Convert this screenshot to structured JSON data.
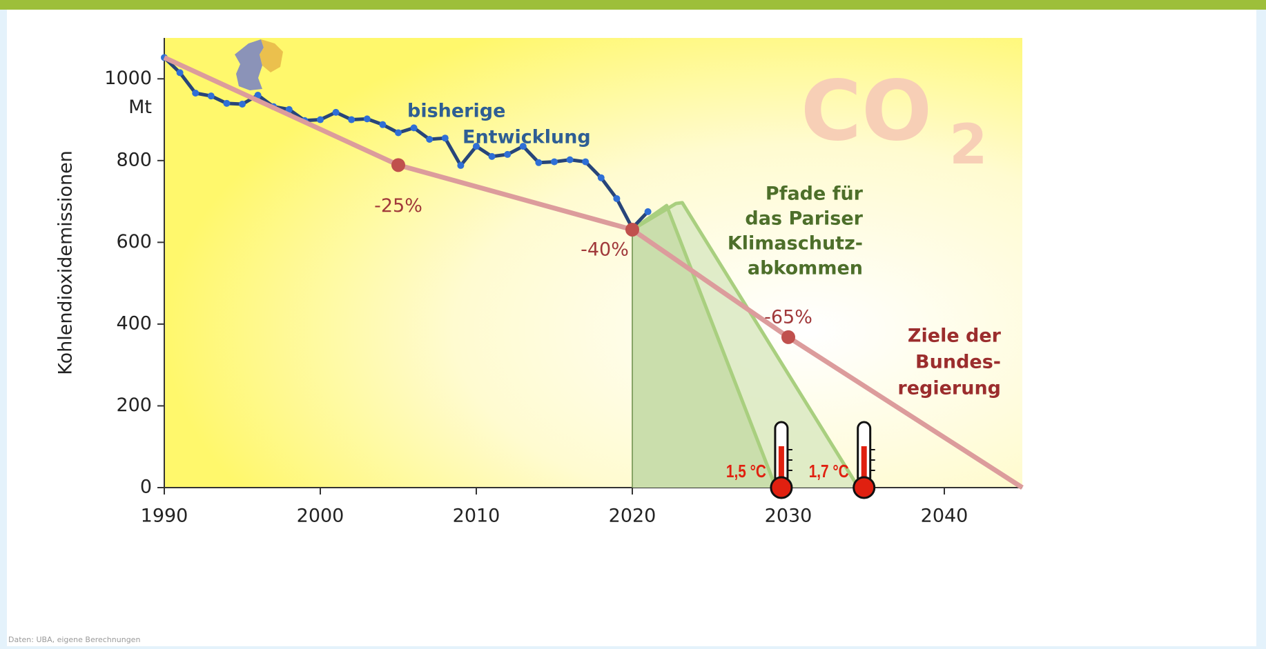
{
  "chart_data": {
    "type": "line",
    "y_label": "Kohlendioxidemissionen",
    "unit_label": "Mt",
    "watermark": {
      "main": "CO",
      "sub": "2"
    },
    "source": "Daten: UBA, eigene Berechnungen",
    "xlim": [
      1990,
      2045
    ],
    "ylim": [
      0,
      1100
    ],
    "xticks": [
      1990,
      2000,
      2010,
      2020,
      2030,
      2040
    ],
    "yticks": [
      0,
      200,
      400,
      600,
      800,
      1000
    ],
    "series": [
      {
        "name_lines": [
          "bisherige",
          "Entwicklung"
        ],
        "color": "#27457a",
        "marker_color": "#2f6fd6",
        "markers": true,
        "x": [
          1990,
          1991,
          1992,
          1993,
          1994,
          1995,
          1996,
          1997,
          1998,
          1999,
          2000,
          2001,
          2002,
          2003,
          2004,
          2005,
          2006,
          2007,
          2008,
          2009,
          2010,
          2011,
          2012,
          2013,
          2014,
          2015,
          2016,
          2017,
          2018,
          2019,
          2020,
          2021
        ],
        "values": [
          1052,
          1015,
          965,
          958,
          940,
          938,
          960,
          932,
          925,
          898,
          900,
          918,
          900,
          902,
          888,
          868,
          880,
          852,
          855,
          788,
          835,
          810,
          815,
          835,
          795,
          797,
          802,
          797,
          758,
          707,
          635,
          675
        ]
      },
      {
        "name_lines": [
          "Ziele der",
          "Bundes-",
          "regierung"
        ],
        "color": "#dc9c9c",
        "marker_color": "#c0504d",
        "x": [
          1990,
          2005,
          2020,
          2030,
          2045
        ],
        "values": [
          1052,
          789,
          631,
          368,
          0
        ],
        "markers": [
          false,
          true,
          true,
          true,
          false
        ]
      },
      {
        "name": "1,5 °C",
        "color": "#a9cf7f",
        "group": 0,
        "x": [
          2020,
          2022.2,
          2029.2
        ],
        "values": [
          631,
          690,
          0
        ]
      },
      {
        "name": "1,7 °C",
        "color": "#a9cf7f",
        "group": 0,
        "x": [
          2020,
          2022.8,
          2023.2,
          2034.5
        ],
        "values": [
          631,
          695,
          697,
          0
        ]
      }
    ],
    "path_group_lines": [
      "Pfade für",
      "das Pariser",
      "Klimaschutz-",
      "abkommen"
    ],
    "annotations": [
      {
        "text": "-25%",
        "x": 2005
      },
      {
        "text": "-40%",
        "x": 2020
      },
      {
        "text": "-65%",
        "x": 2030
      }
    ]
  }
}
